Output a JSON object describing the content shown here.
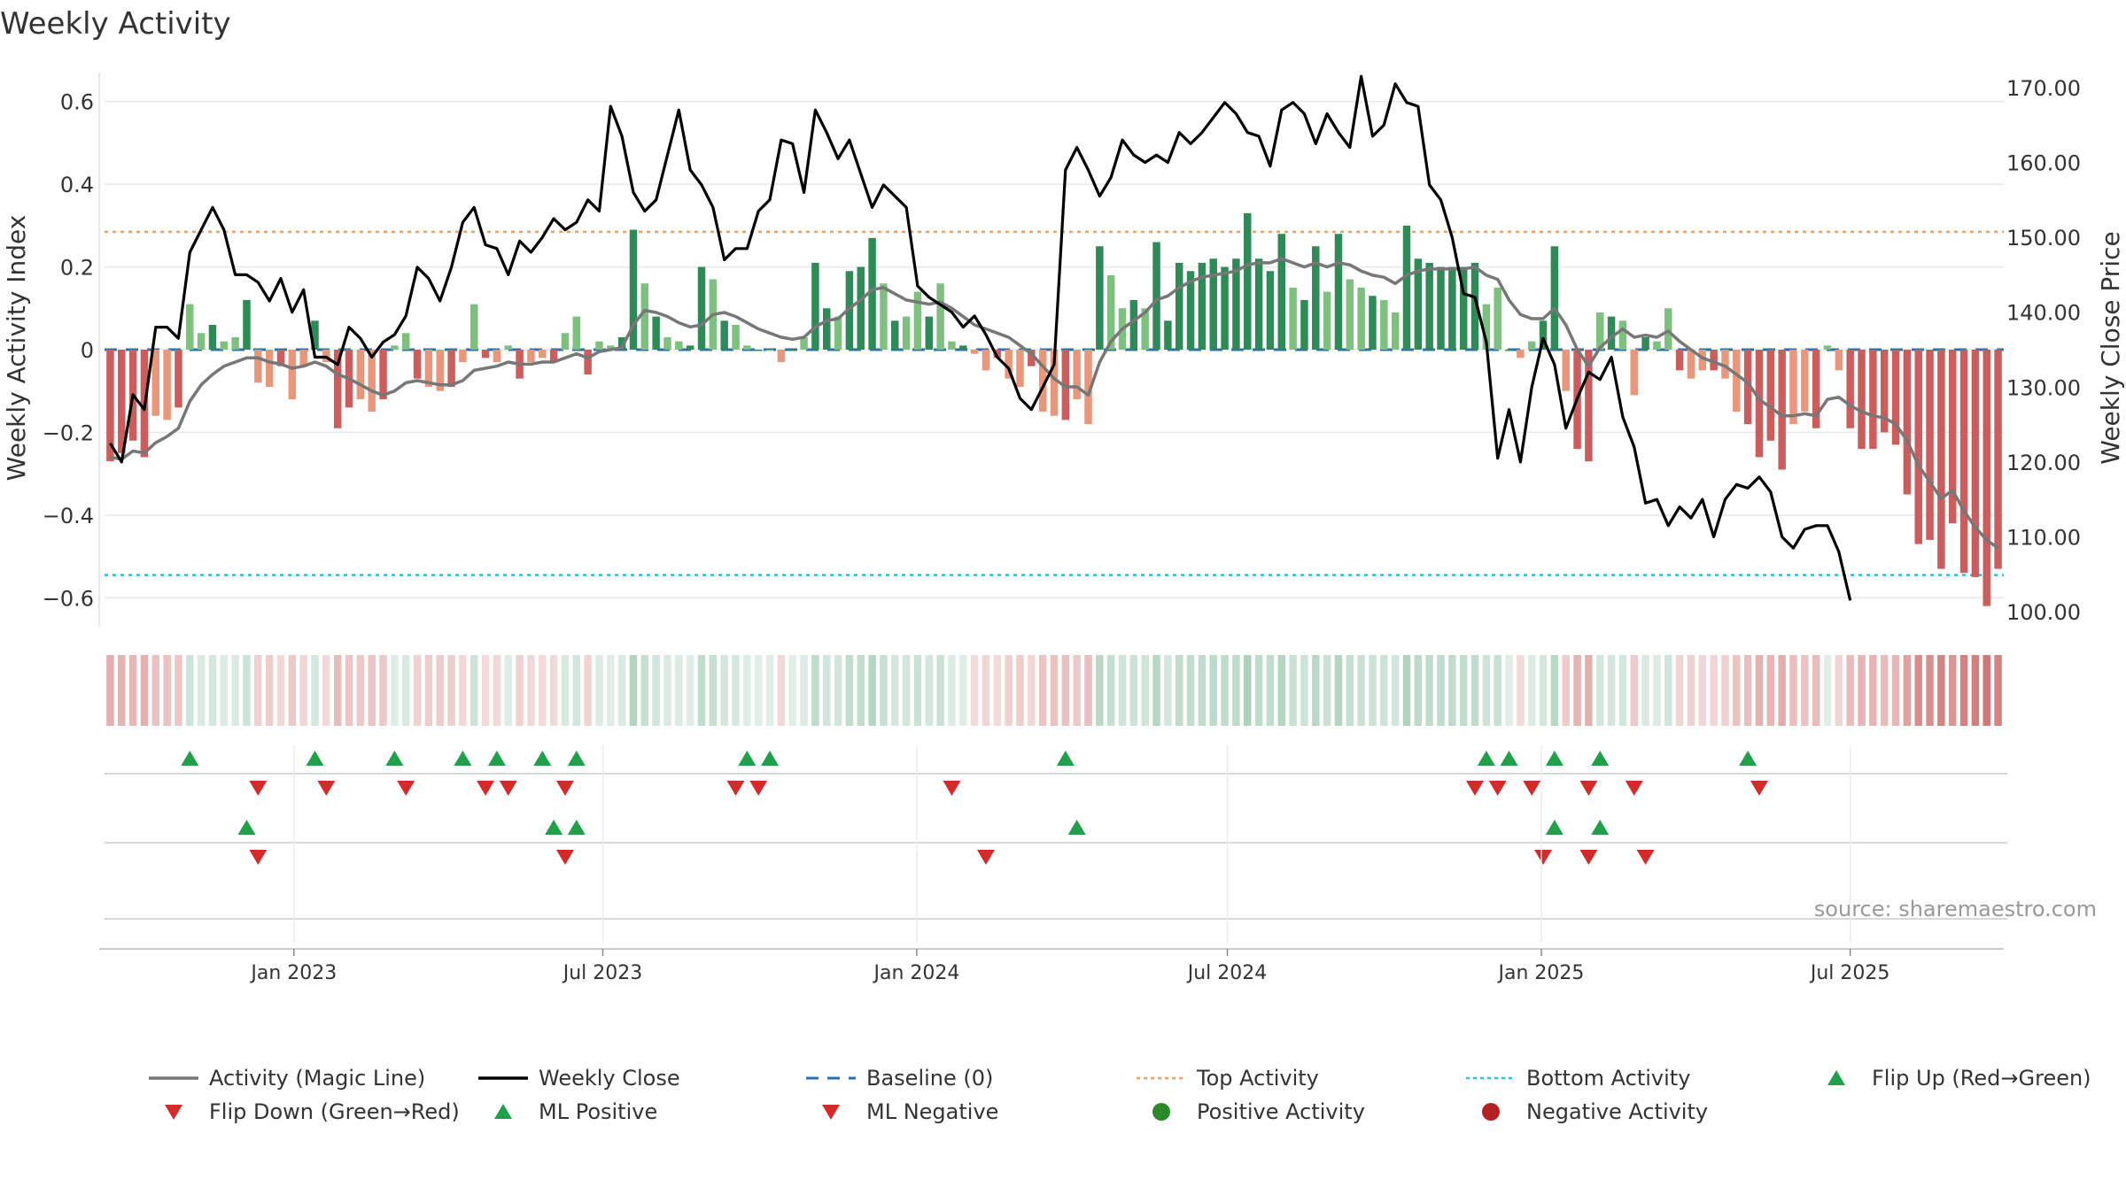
{
  "chart_data": {
    "type": "bar",
    "title": "Weekly Activity",
    "ylabel_left": "Weekly Activity Index",
    "ylabel_right": "Weekly Close Price",
    "source": "source: sharemaestro.com",
    "x_start": "2022-09-12",
    "x_end": "2025-09-29",
    "x_ticks": [
      {
        "label": "Jan 2023",
        "date": "2023-01-01"
      },
      {
        "label": "Jul 2023",
        "date": "2023-07-01"
      },
      {
        "label": "Jan 2024",
        "date": "2024-01-01"
      },
      {
        "label": "Jul 2024",
        "date": "2024-07-01"
      },
      {
        "label": "Jan 2025",
        "date": "2025-01-01"
      },
      {
        "label": "Jul 2025",
        "date": "2025-07-01"
      }
    ],
    "left_axis": {
      "ylim": [
        -0.67,
        0.67
      ],
      "ticks": [
        0.6,
        0.4,
        0.2,
        0,
        -0.2,
        -0.4,
        -0.6
      ],
      "tick_labels": [
        "0.6",
        "0.4",
        "0.2",
        "0",
        "−0.2",
        "−0.4",
        "−0.6"
      ]
    },
    "right_axis": {
      "ylim": [
        98.0,
        172.0
      ],
      "ticks": [
        170,
        160,
        150,
        140,
        130,
        120,
        110,
        100
      ],
      "tick_labels": [
        "170.00",
        "160.00",
        "150.00",
        "140.00",
        "130.00",
        "120.00",
        "110.00",
        "100.00"
      ]
    },
    "top_activity": 0.285,
    "bottom_activity": -0.545,
    "activity": [
      -0.27,
      -0.25,
      -0.22,
      -0.26,
      -0.16,
      -0.17,
      -0.14,
      0.11,
      0.04,
      0.06,
      0.02,
      0.03,
      0.12,
      -0.08,
      -0.09,
      -0.04,
      -0.12,
      -0.04,
      0.07,
      -0.03,
      -0.19,
      -0.14,
      -0.12,
      -0.15,
      -0.12,
      0.01,
      0.04,
      -0.07,
      -0.09,
      -0.1,
      -0.09,
      -0.03,
      0.11,
      -0.02,
      -0.03,
      0.01,
      -0.07,
      -0.03,
      -0.02,
      -0.03,
      0.04,
      0.08,
      -0.06,
      0.02,
      0.01,
      0.03,
      0.29,
      0.16,
      0.08,
      0.03,
      0.02,
      0.01,
      0.2,
      0.17,
      0.07,
      0.06,
      0.01,
      0.0,
      0.0,
      -0.03,
      0.0,
      0.03,
      0.21,
      0.1,
      0.08,
      0.19,
      0.2,
      0.27,
      0.16,
      0.07,
      0.08,
      0.14,
      0.08,
      0.16,
      0.02,
      0.01,
      -0.01,
      -0.05,
      -0.02,
      -0.07,
      -0.09,
      -0.04,
      -0.15,
      -0.16,
      -0.17,
      -0.12,
      -0.18,
      0.25,
      0.18,
      0.1,
      0.12,
      0.1,
      0.26,
      0.07,
      0.21,
      0.19,
      0.21,
      0.22,
      0.2,
      0.22,
      0.33,
      0.22,
      0.19,
      0.28,
      0.15,
      0.12,
      0.25,
      0.14,
      0.28,
      0.17,
      0.15,
      0.13,
      0.12,
      0.09,
      0.3,
      0.22,
      0.21,
      0.2,
      0.2,
      0.2,
      0.21,
      0.11,
      0.15,
      0.0,
      -0.02,
      0.02,
      0.07,
      0.25,
      -0.1,
      -0.24,
      -0.27,
      0.09,
      0.08,
      0.07,
      -0.11,
      0.03,
      0.02,
      0.1,
      -0.05,
      -0.07,
      -0.05,
      -0.05,
      -0.07,
      -0.15,
      -0.18,
      -0.26,
      -0.22,
      -0.29,
      -0.18,
      -0.15,
      -0.19,
      0.01,
      -0.05,
      -0.19,
      -0.24,
      -0.24,
      -0.2,
      -0.23,
      -0.35,
      -0.47,
      -0.46,
      -0.53,
      -0.42,
      -0.54,
      -0.55,
      -0.62,
      -0.53
    ],
    "magic_line": [
      -0.26,
      -0.265,
      -0.245,
      -0.25,
      -0.225,
      -0.21,
      -0.19,
      -0.125,
      -0.085,
      -0.06,
      -0.04,
      -0.03,
      -0.02,
      -0.02,
      -0.03,
      -0.035,
      -0.045,
      -0.04,
      -0.03,
      -0.04,
      -0.06,
      -0.07,
      -0.085,
      -0.1,
      -0.11,
      -0.1,
      -0.08,
      -0.075,
      -0.08,
      -0.085,
      -0.085,
      -0.075,
      -0.05,
      -0.045,
      -0.04,
      -0.03,
      -0.035,
      -0.035,
      -0.03,
      -0.03,
      -0.02,
      -0.01,
      -0.02,
      -0.005,
      0.0,
      0.005,
      0.06,
      0.095,
      0.09,
      0.08,
      0.065,
      0.055,
      0.06,
      0.085,
      0.09,
      0.08,
      0.065,
      0.05,
      0.04,
      0.03,
      0.025,
      0.03,
      0.055,
      0.07,
      0.075,
      0.1,
      0.12,
      0.145,
      0.15,
      0.135,
      0.12,
      0.115,
      0.11,
      0.115,
      0.1,
      0.08,
      0.06,
      0.05,
      0.04,
      0.03,
      0.01,
      -0.01,
      -0.04,
      -0.07,
      -0.09,
      -0.09,
      -0.11,
      -0.03,
      0.02,
      0.05,
      0.07,
      0.09,
      0.12,
      0.13,
      0.15,
      0.165,
      0.175,
      0.18,
      0.185,
      0.19,
      0.205,
      0.21,
      0.21,
      0.22,
      0.21,
      0.2,
      0.21,
      0.2,
      0.21,
      0.205,
      0.19,
      0.18,
      0.175,
      0.16,
      0.18,
      0.19,
      0.195,
      0.195,
      0.195,
      0.195,
      0.2,
      0.18,
      0.17,
      0.12,
      0.085,
      0.075,
      0.075,
      0.1,
      0.06,
      0.0,
      -0.04,
      0.005,
      0.03,
      0.05,
      0.03,
      0.035,
      0.03,
      0.045,
      0.02,
      0.0,
      -0.02,
      -0.03,
      -0.04,
      -0.06,
      -0.08,
      -0.12,
      -0.14,
      -0.16,
      -0.16,
      -0.155,
      -0.16,
      -0.12,
      -0.115,
      -0.135,
      -0.15,
      -0.16,
      -0.165,
      -0.18,
      -0.22,
      -0.28,
      -0.32,
      -0.36,
      -0.34,
      -0.39,
      -0.43,
      -0.46,
      -0.48
    ],
    "weekly_close": [
      122.5,
      120.0,
      129.0,
      127.0,
      138.0,
      138.0,
      136.5,
      148.0,
      151.0,
      154.0,
      151.0,
      145.0,
      145.0,
      144.0,
      141.5,
      144.5,
      140.0,
      143.0,
      134.0,
      134.0,
      133.0,
      138.0,
      136.5,
      134.0,
      136.0,
      137.0,
      139.5,
      146.0,
      144.5,
      141.5,
      146.0,
      152.0,
      154.0,
      149.0,
      148.5,
      145.0,
      149.5,
      148.0,
      150.0,
      152.5,
      151.0,
      152.0,
      155.0,
      153.5,
      167.5,
      163.5,
      156.0,
      153.5,
      155.0,
      161.0,
      167.0,
      159.0,
      157.0,
      154.0,
      147.0,
      148.5,
      148.5,
      153.5,
      155.0,
      163.0,
      162.5,
      156.0,
      167.0,
      164.0,
      160.5,
      163.0,
      158.5,
      154.0,
      157.0,
      155.5,
      154.0,
      143.5,
      142.0,
      141.0,
      140.0,
      138.0,
      139.5,
      137.0,
      134.0,
      132.5,
      128.5,
      127.0,
      130.0,
      133.0,
      159.0,
      162.0,
      159.0,
      155.5,
      158.0,
      163.0,
      161.0,
      160.0,
      161.0,
      160.0,
      164.0,
      162.5,
      164.0,
      166.0,
      168.0,
      166.5,
      164.0,
      163.5,
      159.5,
      167.0,
      168.0,
      166.5,
      162.5,
      166.5,
      164.0,
      162.0,
      171.5,
      163.5,
      165.0,
      170.5,
      168.0,
      167.5,
      157.0,
      155.0,
      150.0,
      142.5,
      142.0,
      136.0,
      120.5,
      127.0,
      120.0,
      130.0,
      136.5,
      133.0,
      124.5,
      128.5,
      132.0,
      131.0,
      134.0,
      126.0,
      122.0,
      114.5,
      115.0,
      111.5,
      114.0,
      112.5,
      115.0,
      110.0,
      115.0,
      117.0,
      116.5,
      118.0,
      116.0,
      110.0,
      108.5,
      111.0,
      111.5,
      111.5,
      108.0,
      101.5
    ]
  },
  "strips": {
    "rows": [
      {
        "name": "activity-flip",
        "up": [
          7,
          18,
          25,
          31,
          34,
          38,
          41,
          56,
          58,
          84,
          121,
          123,
          127,
          131,
          144
        ],
        "down": [
          13,
          19,
          26,
          33,
          35,
          40,
          55,
          57,
          74,
          120,
          122,
          125,
          130,
          134,
          145
        ]
      },
      {
        "name": "magic-line-flip",
        "up": [
          12,
          39,
          41,
          85,
          127,
          131
        ],
        "down": [
          13,
          40,
          77,
          126,
          130,
          135
        ]
      },
      {
        "name": "empty",
        "up": [],
        "down": []
      }
    ]
  },
  "legend": [
    {
      "label": "Activity (Magic Line)",
      "kind": "line",
      "color": "#777777"
    },
    {
      "label": "Weekly Close",
      "kind": "line",
      "color": "#000000"
    },
    {
      "label": "Baseline (0)",
      "kind": "dash",
      "color": "#2b6fb0"
    },
    {
      "label": "Top Activity",
      "kind": "dot",
      "color": "#f0a060"
    },
    {
      "label": "Bottom Activity",
      "kind": "dot",
      "color": "#22c7d3"
    },
    {
      "label": "Flip Up (Red→Green)",
      "kind": "tri-up",
      "color": "#21a04a"
    },
    {
      "label": "Flip Down (Green→Red)",
      "kind": "tri-down",
      "color": "#d62a2a"
    },
    {
      "label": "ML Positive",
      "kind": "tri-up",
      "color": "#21a04a"
    },
    {
      "label": "ML Negative",
      "kind": "tri-down",
      "color": "#d62a2a"
    },
    {
      "label": "Positive Activity",
      "kind": "circle",
      "color": "#2a8a2a"
    },
    {
      "label": "Negative Activity",
      "kind": "circle",
      "color": "#b22222"
    }
  ],
  "colors": {
    "pos_strong": "#2e8b57",
    "pos_light": "#7ec07e",
    "neg_strong": "#cd5c5c",
    "neg_light": "#e9967a",
    "grid": "#e8e8e8"
  }
}
